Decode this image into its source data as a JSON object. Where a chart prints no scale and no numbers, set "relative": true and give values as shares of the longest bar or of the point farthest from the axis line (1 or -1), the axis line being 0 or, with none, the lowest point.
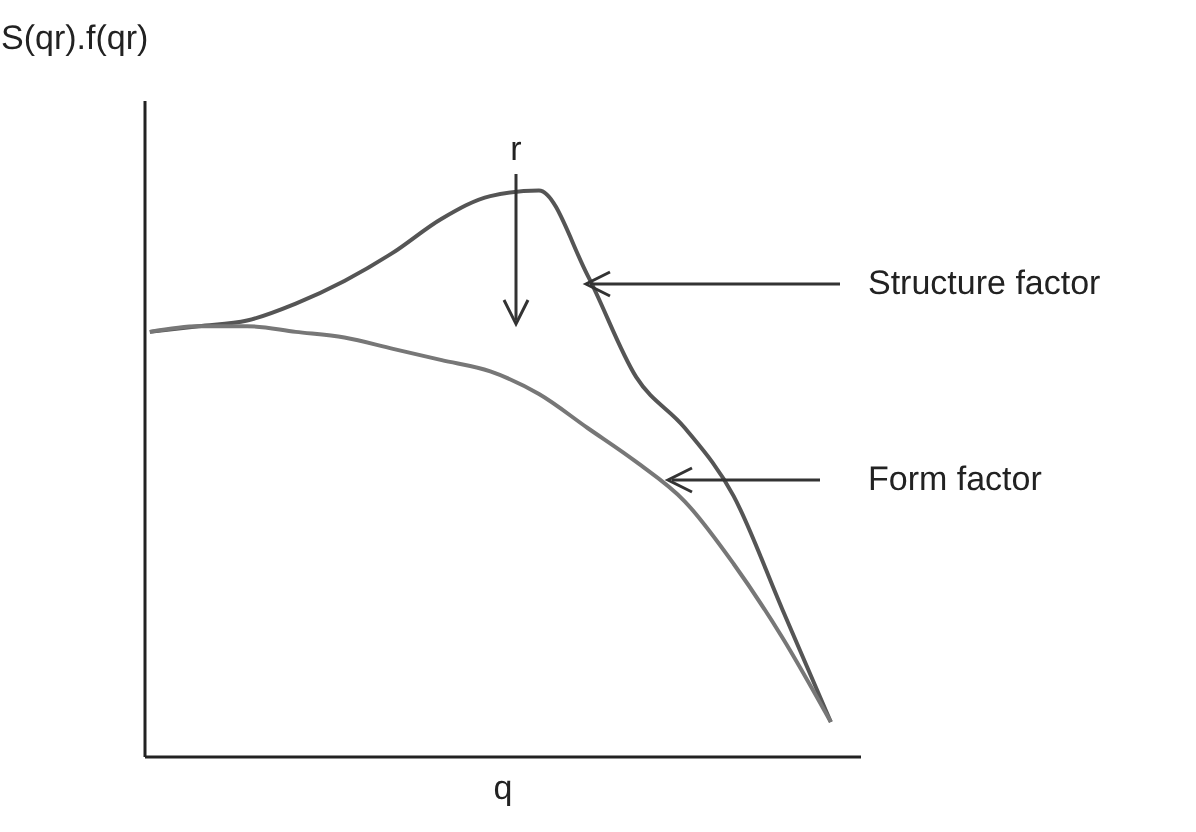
{
  "chart_data": {
    "type": "line",
    "relative": true,
    "xlabel": "q",
    "ylabel": "S(qr).f(qr)",
    "annotations": [
      "r"
    ],
    "line_style": "solid",
    "categories": [
      null,
      null,
      null,
      null,
      null,
      null,
      null,
      null,
      null,
      null,
      null,
      null,
      null,
      null,
      null
    ],
    "series": [
      {
        "name": "Structure factor",
        "color": "#555555",
        "values": [
          0.75,
          0.76,
          0.77,
          0.8,
          0.84,
          0.89,
          0.95,
          0.99,
          1,
          0.85,
          0.67,
          0.58,
          0.46,
          0.26,
          0.06
        ]
      },
      {
        "name": "Form factor",
        "color": "#777777",
        "values": [
          0.75,
          0.76,
          0.76,
          0.75,
          0.74,
          0.72,
          0.7,
          0.68,
          0.64,
          0.58,
          0.52,
          0.45,
          0.34,
          0.21,
          0.06
        ]
      }
    ]
  }
}
